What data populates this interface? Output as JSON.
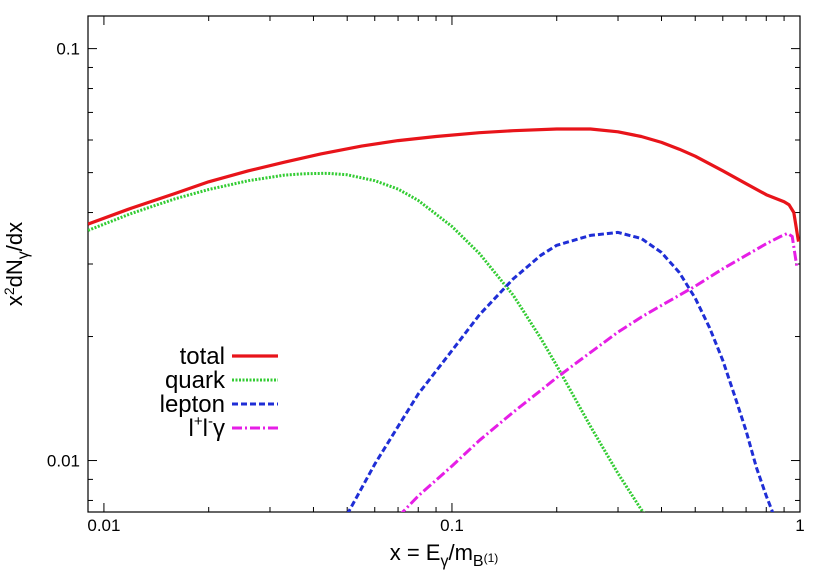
{
  "chart_data": {
    "type": "line",
    "xlabel": {
      "base": "x = E",
      "sub1": "γ",
      "mid": "/m",
      "sub2": "B",
      "sup": "(1)"
    },
    "ylabel": {
      "base": "x",
      "sup": "2",
      "mid": "dN",
      "sub": "γ",
      "end": "/dx"
    },
    "x_scale": "log",
    "y_scale": "log",
    "xlim": [
      0.009,
      1.0
    ],
    "ylim": [
      0.0075,
      0.12
    ],
    "x_ticks": [
      {
        "value": 0.01,
        "label": "0.01"
      },
      {
        "value": 0.1,
        "label": "0.1"
      },
      {
        "value": 1,
        "label": "1"
      }
    ],
    "y_ticks": [
      {
        "value": 0.01,
        "label": "0.01"
      },
      {
        "value": 0.1,
        "label": "0.1"
      }
    ],
    "grid": false,
    "legend_position": "left-middle",
    "series": [
      {
        "name": "total",
        "legend": {
          "base": "total"
        },
        "color": "#e8141a",
        "style": "solid",
        "x": [
          0.009,
          0.012,
          0.016,
          0.02,
          0.026,
          0.033,
          0.042,
          0.055,
          0.07,
          0.09,
          0.12,
          0.15,
          0.2,
          0.25,
          0.3,
          0.35,
          0.4,
          0.45,
          0.5,
          0.6,
          0.7,
          0.8,
          0.9,
          0.93,
          0.96,
          0.99
        ],
        "y": [
          0.0375,
          0.041,
          0.0445,
          0.0475,
          0.0505,
          0.053,
          0.0555,
          0.058,
          0.0598,
          0.0612,
          0.0625,
          0.0632,
          0.0638,
          0.0638,
          0.0628,
          0.0612,
          0.0592,
          0.057,
          0.0548,
          0.0505,
          0.047,
          0.0442,
          0.0425,
          0.0418,
          0.04,
          0.034
        ]
      },
      {
        "name": "quark",
        "legend": {
          "base": "quark"
        },
        "color": "#33cc33",
        "style": "dotted",
        "x": [
          0.009,
          0.012,
          0.016,
          0.02,
          0.026,
          0.033,
          0.038,
          0.044,
          0.05,
          0.06,
          0.07,
          0.08,
          0.1,
          0.12,
          0.15,
          0.18,
          0.2,
          0.25,
          0.3,
          0.35,
          0.4
        ],
        "y": [
          0.0362,
          0.0398,
          0.0432,
          0.0455,
          0.0478,
          0.0493,
          0.0497,
          0.0498,
          0.0494,
          0.0478,
          0.0456,
          0.0428,
          0.037,
          0.0318,
          0.0252,
          0.0198,
          0.017,
          0.0121,
          0.0093,
          0.0076,
          0.0066
        ]
      },
      {
        "name": "lepton",
        "legend": {
          "base": "lepton"
        },
        "color": "#1f2ed6",
        "style": "dashed",
        "x": [
          0.05,
          0.06,
          0.07,
          0.08,
          0.1,
          0.12,
          0.15,
          0.18,
          0.2,
          0.25,
          0.3,
          0.35,
          0.4,
          0.45,
          0.5,
          0.55,
          0.6,
          0.65,
          0.7,
          0.75,
          0.8,
          0.85
        ],
        "y": [
          0.0074,
          0.0098,
          0.0121,
          0.0145,
          0.0185,
          0.0226,
          0.0276,
          0.0315,
          0.0333,
          0.0352,
          0.0358,
          0.0346,
          0.032,
          0.0286,
          0.0248,
          0.021,
          0.0175,
          0.0143,
          0.0118,
          0.0096,
          0.0082,
          0.0072
        ]
      },
      {
        "name": "l+l-γ",
        "legend": {
          "base": "l",
          "sup1": "+",
          "mid": "l",
          "sup2": "-",
          "end": "γ"
        },
        "color": "#e61ee6",
        "style": "dashdot",
        "x": [
          0.07,
          0.08,
          0.1,
          0.12,
          0.15,
          0.18,
          0.2,
          0.25,
          0.3,
          0.35,
          0.4,
          0.5,
          0.6,
          0.7,
          0.8,
          0.88,
          0.92,
          0.95,
          0.98
        ],
        "y": [
          0.0073,
          0.0082,
          0.0097,
          0.0112,
          0.0131,
          0.0148,
          0.0159,
          0.0183,
          0.0205,
          0.0223,
          0.0238,
          0.0265,
          0.0292,
          0.0315,
          0.0336,
          0.035,
          0.0356,
          0.035,
          0.0295
        ]
      }
    ]
  }
}
